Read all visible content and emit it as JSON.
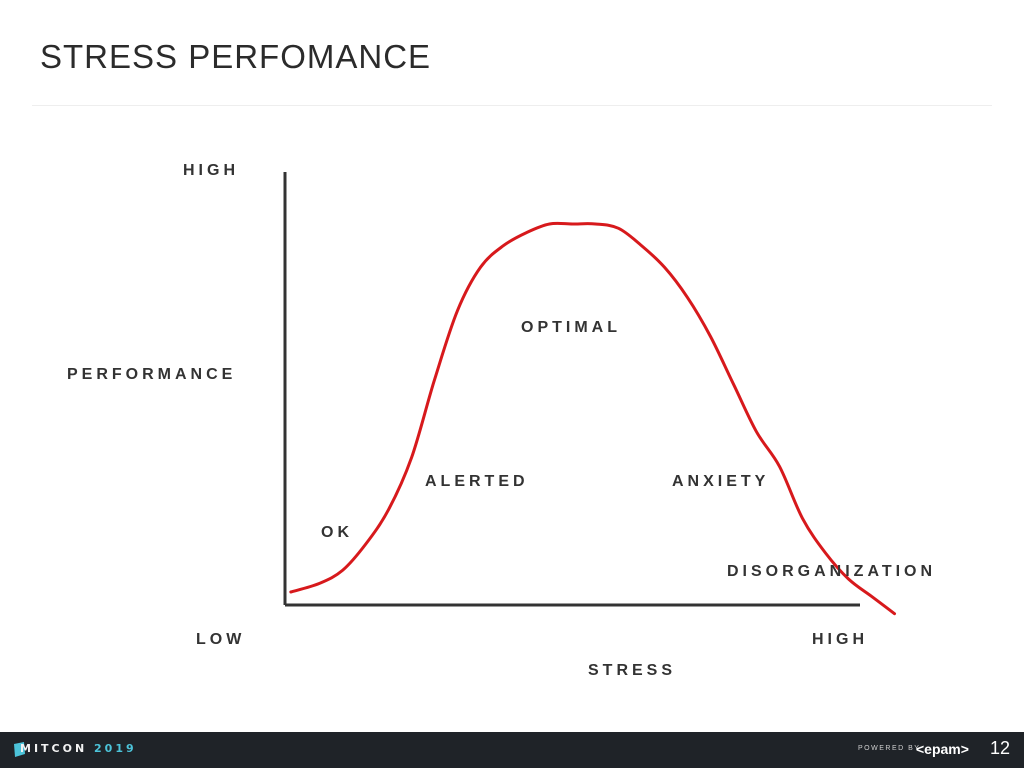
{
  "slide": {
    "title": "STRESS PERFOMANCE",
    "page_number": "12"
  },
  "footer": {
    "event_name": "MITCON",
    "event_year": "2019",
    "powered_by": "POWERED BY",
    "brand": "<epam>"
  },
  "chart_data": {
    "type": "line",
    "title": "",
    "xlabel": "STRESS",
    "ylabel": "PERFORMANCE",
    "x_axis_ends": [
      "LOW",
      "HIGH"
    ],
    "y_axis_top": "HIGH",
    "xlim": [
      0,
      100
    ],
    "ylim": [
      0,
      100
    ],
    "grid": false,
    "series": [
      {
        "color": "#d7191c",
        "x": [
          1,
          6,
          10,
          14,
          18,
          22,
          26,
          30,
          34,
          38,
          42,
          46,
          50,
          54,
          58,
          62,
          66,
          70,
          74,
          78,
          82,
          86,
          90,
          94,
          98,
          102,
          106
        ],
        "y": [
          3,
          5,
          8,
          14,
          22,
          34,
          52,
          68,
          78,
          83,
          86,
          88,
          88,
          88,
          87,
          83,
          78,
          71,
          62,
          51,
          40,
          32,
          20,
          12,
          6,
          2,
          -2
        ]
      }
    ],
    "annotations": [
      {
        "text": "OK",
        "x": 9,
        "y": 24
      },
      {
        "text": "ALERTED",
        "x": 25,
        "y": 41
      },
      {
        "text": "OPTIMAL",
        "x": 41,
        "y": 94
      },
      {
        "text": "ANXIETY",
        "x": 67,
        "y": 41
      },
      {
        "text": "DISORGANIZATION",
        "x": 77,
        "y": 11
      }
    ]
  }
}
